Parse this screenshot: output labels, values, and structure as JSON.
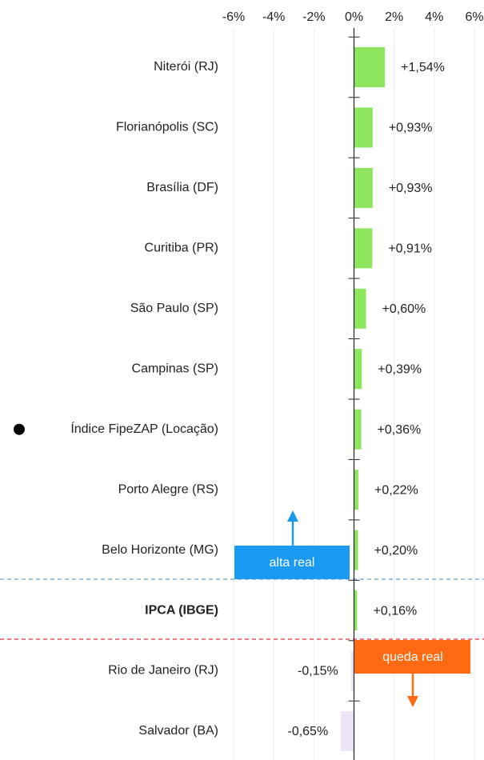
{
  "chart_data": {
    "type": "bar",
    "orientation": "horizontal",
    "categories": [
      "Niterói (RJ)",
      "Florianópolis (SC)",
      "Brasília (DF)",
      "Curitiba (PR)",
      "São Paulo (SP)",
      "Campinas (SP)",
      "Índice FipeZAP (Locação)",
      "Porto Alegre (RS)",
      "Belo Horizonte (MG)",
      "IPCA (IBGE)",
      "Rio de Janeiro (RJ)",
      "Salvador (BA)"
    ],
    "values": [
      1.54,
      0.93,
      0.93,
      0.91,
      0.6,
      0.39,
      0.36,
      0.22,
      0.2,
      0.16,
      -0.15,
      -0.65
    ],
    "value_labels": [
      "+1,54%",
      "+0,93%",
      "+0,93%",
      "+0,91%",
      "+0,60%",
      "+0,39%",
      "+0,36%",
      "+0,22%",
      "+0,20%",
      "+0,16%",
      "-0,15%",
      "-0,65%"
    ],
    "colors": [
      "#8ee65f",
      "#8ee65f",
      "#8ee65f",
      "#8ee65f",
      "#8ee65f",
      "#8ee65f",
      "#8ee65f",
      "#8ee65f",
      "#8ee65f",
      "#8ee65f",
      "#ece4f7",
      "#ece4f7"
    ],
    "bold_category": "IPCA (IBGE)",
    "xlim": [
      -6,
      6
    ],
    "xticks": [
      {
        "value": -6,
        "label": "-6%"
      },
      {
        "value": -4,
        "label": "-4%"
      },
      {
        "value": -2,
        "label": "-2%"
      },
      {
        "value": 0,
        "label": "0%"
      },
      {
        "value": 2,
        "label": "2%"
      },
      {
        "value": 4,
        "label": "4%"
      },
      {
        "value": 6,
        "label": "6%"
      }
    ],
    "grid": true,
    "annotations": [
      {
        "text": "alta real",
        "color": "#1a9af0"
      },
      {
        "text": "queda real",
        "color": "#ff6a13"
      }
    ]
  }
}
